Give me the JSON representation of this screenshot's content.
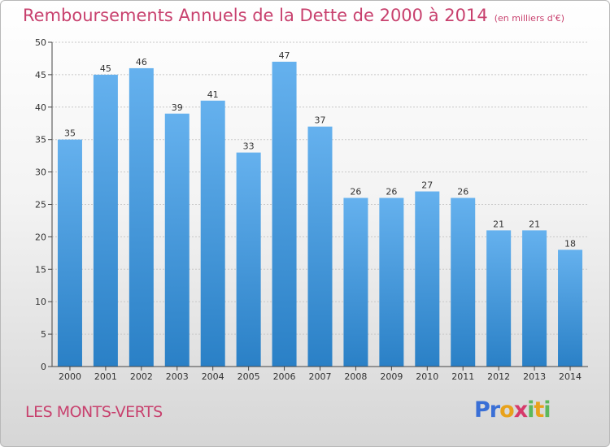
{
  "title": "Remboursements Annuels de la Dette de 2000 à 2014",
  "unit": "(en milliers d'€)",
  "commune": "LES MONTS-VERTS",
  "logo": [
    "P",
    "r",
    "o",
    "x",
    "i",
    "t",
    "i"
  ],
  "colors": {
    "title": "#c8416e",
    "bar_top": "#65b1ee",
    "bar_bottom": "#2a80c6",
    "logo": [
      "#3a6fd6",
      "#3a6fd6",
      "#e8a21b",
      "#d63a6a",
      "#5cb85c",
      "#e8a21b",
      "#5cb85c"
    ]
  },
  "chart_data": {
    "type": "bar",
    "categories": [
      "2000",
      "2001",
      "2002",
      "2003",
      "2004",
      "2005",
      "2006",
      "2007",
      "2008",
      "2009",
      "2010",
      "2011",
      "2012",
      "2013",
      "2014"
    ],
    "values": [
      35,
      45,
      46,
      39,
      41,
      33,
      47,
      37,
      26,
      26,
      27,
      26,
      21,
      21,
      18
    ],
    "ylim": [
      0,
      50
    ],
    "yticks": [
      0,
      5,
      10,
      15,
      20,
      25,
      30,
      35,
      40,
      45,
      50
    ],
    "grid": true,
    "data_labels": true
  }
}
